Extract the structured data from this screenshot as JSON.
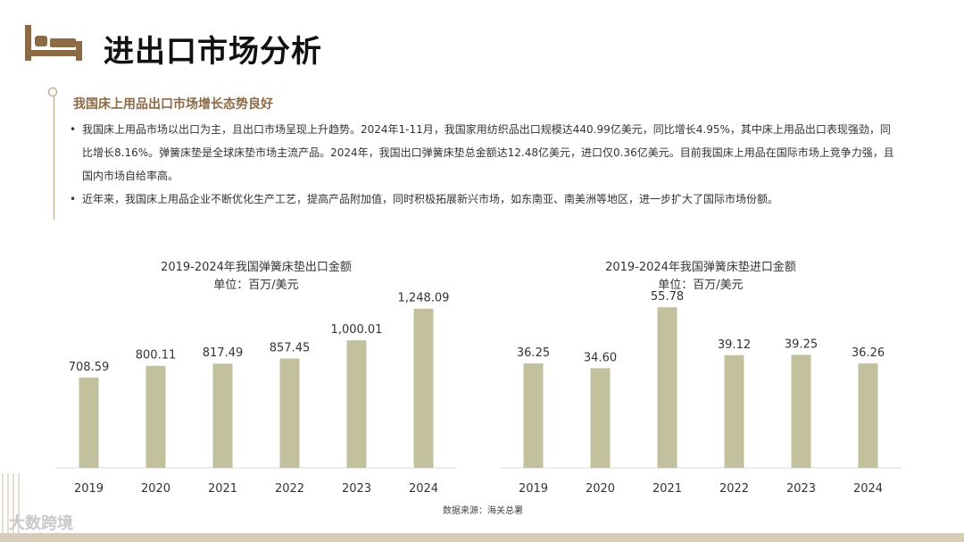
{
  "header": {
    "title": "进出口市场分析",
    "icon": "bed-icon"
  },
  "section": {
    "subtitle": "我国床上用品出口市场增长态势良好",
    "bullets": [
      "我国床上用品市场以出口为主，且出口市场呈现上升趋势。2024年1-11月，我国家用纺织品出口规模达440.99亿美元，同比增长4.95%，其中床上用品出口表现强劲，同比增长8.16%。弹簧床垫是全球床垫市场主流产品。2024年，我国出口弹簧床垫总金额达12.48亿美元，进口仅0.36亿美元。目前我国床上用品在国际市场上竞争力强，且国内市场自给率高。",
      "近年来，我国床上用品企业不断优化生产工艺，提高产品附加值，同时积极拓展新兴市场，如东南亚、南美洲等地区，进一步扩大了国际市场份额。"
    ],
    "bullet_mark": "•"
  },
  "chart_data": [
    {
      "type": "bar",
      "title": "2019-2024年我国弹簧床垫出口金额",
      "unit_label": "单位：百万/美元",
      "categories": [
        "2019",
        "2020",
        "2021",
        "2022",
        "2023",
        "2024"
      ],
      "values": [
        708.59,
        800.11,
        817.49,
        857.45,
        1000.01,
        1248.09
      ],
      "data_labels": [
        "708.59",
        "800.11",
        "817.49",
        "857.45",
        "1,000.01",
        "1,248.09"
      ],
      "ylim": [
        0,
        1400
      ],
      "grid": false,
      "bar_color": "#c2c09d"
    },
    {
      "type": "bar",
      "title": "2019-2024年我国弹簧床垫进口金额",
      "unit_label": "单位：百万/美元",
      "categories": [
        "2019",
        "2020",
        "2021",
        "2022",
        "2023",
        "2024"
      ],
      "values": [
        36.25,
        34.6,
        55.78,
        39.12,
        39.25,
        36.26
      ],
      "data_labels": [
        "36.25",
        "34.60",
        "55.78",
        "39.12",
        "39.25",
        "36.26"
      ],
      "ylim": [
        0,
        62
      ],
      "grid": false,
      "bar_color": "#c2c09d"
    }
  ],
  "footer": {
    "source": "数据来源：海关总署",
    "logo_text": "大数跨境",
    "accent_color": "#8b6a45"
  }
}
